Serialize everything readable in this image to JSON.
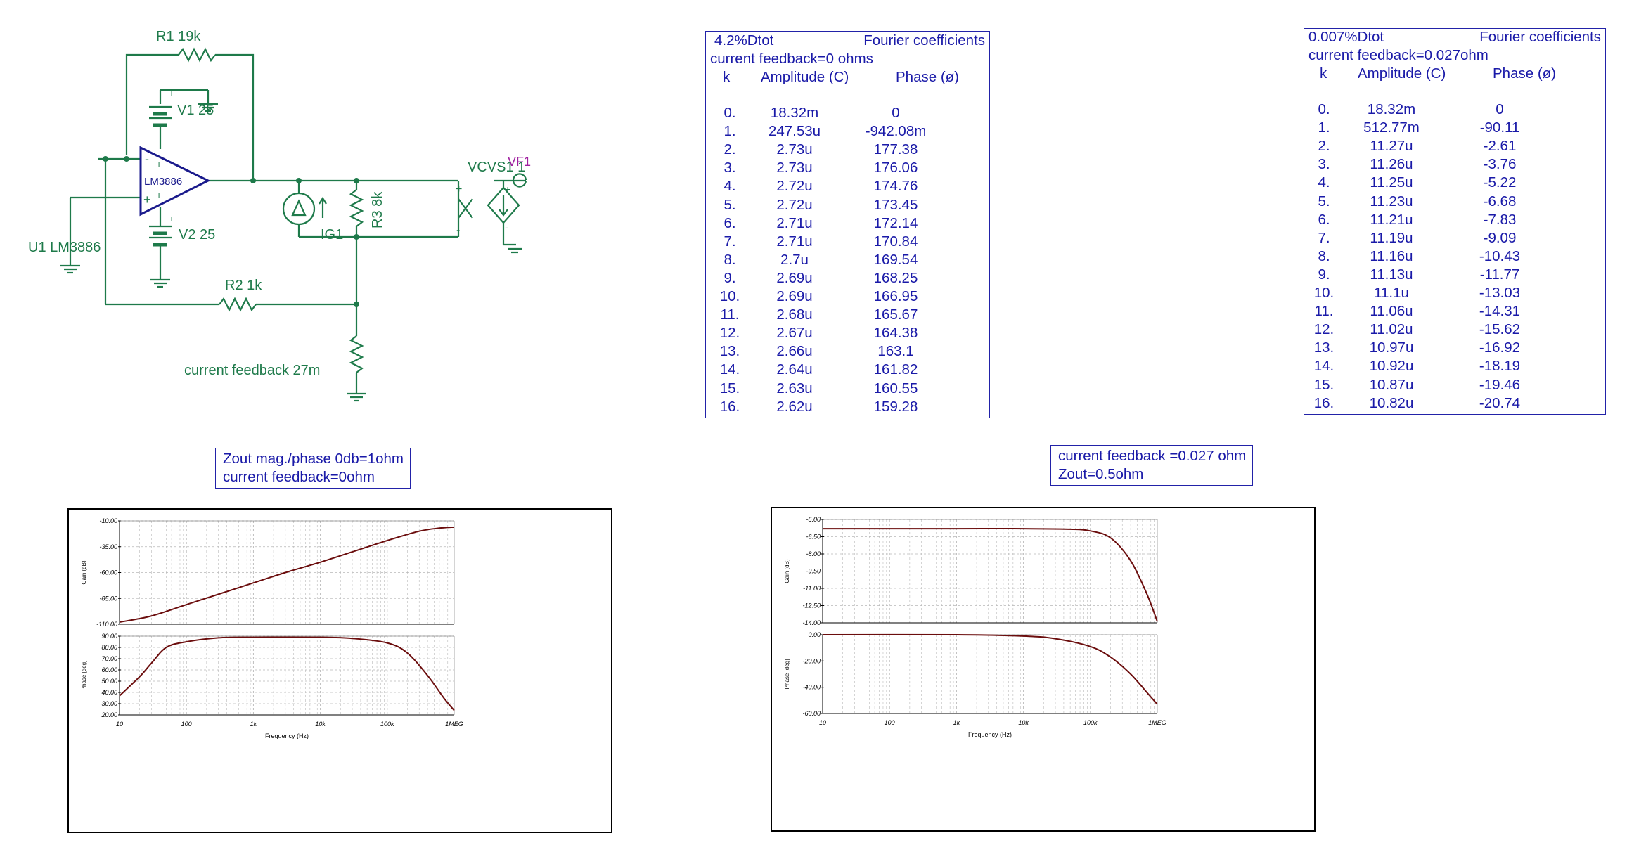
{
  "schematic": {
    "r1": "R1 19k",
    "v1": "V1 25",
    "v2": "V2 25",
    "opamp": "LM3886",
    "u1": "U1 LM3886",
    "r2": "R2 1k",
    "r3": "R3 8k",
    "ig1": "IG1",
    "vcvs": "VCVS1 1",
    "vf1": "VF1",
    "feedback": "current feedback 27m",
    "plus": "+",
    "minus": "-"
  },
  "fourier_left": {
    "title_left": "4.2%Dtot",
    "title_right": "Fourier coefficients",
    "subtitle": "current feedback=0 ohms",
    "col_k": "k",
    "col_amp": "Amplitude (C)",
    "col_phase": "Phase (ø)",
    "rows": [
      [
        "0.",
        "18.32m",
        "0"
      ],
      [
        "1.",
        "247.53u",
        "-942.08m"
      ],
      [
        "2.",
        "2.73u",
        "177.38"
      ],
      [
        "3.",
        "2.73u",
        "176.06"
      ],
      [
        "4.",
        "2.72u",
        "174.76"
      ],
      [
        "5.",
        "2.72u",
        "173.45"
      ],
      [
        "6.",
        "2.71u",
        "172.14"
      ],
      [
        "7.",
        "2.71u",
        "170.84"
      ],
      [
        "8.",
        "2.7u",
        "169.54"
      ],
      [
        "9.",
        "2.69u",
        "168.25"
      ],
      [
        "10.",
        "2.69u",
        "166.95"
      ],
      [
        "11.",
        "2.68u",
        "165.67"
      ],
      [
        "12.",
        "2.67u",
        "164.38"
      ],
      [
        "13.",
        "2.66u",
        "163.1"
      ],
      [
        "14.",
        "2.64u",
        "161.82"
      ],
      [
        "15.",
        "2.63u",
        "160.55"
      ],
      [
        "16.",
        "2.62u",
        "159.28"
      ]
    ]
  },
  "fourier_right": {
    "title_left": "0.007%Dtot",
    "title_right": "Fourier coefficients",
    "subtitle": "current feedback=0.027ohm",
    "col_k": "k",
    "col_amp": "Amplitude (C)",
    "col_phase": "Phase (ø)",
    "rows": [
      [
        "0.",
        "18.32m",
        "0"
      ],
      [
        "1.",
        "512.77m",
        "-90.11"
      ],
      [
        "2.",
        "11.27u",
        "-2.61"
      ],
      [
        "3.",
        "11.26u",
        "-3.76"
      ],
      [
        "4.",
        "11.25u",
        "-5.22"
      ],
      [
        "5.",
        "11.23u",
        "-6.68"
      ],
      [
        "6.",
        "11.21u",
        "-7.83"
      ],
      [
        "7.",
        "11.19u",
        "-9.09"
      ],
      [
        "8.",
        "11.16u",
        "-10.43"
      ],
      [
        "9.",
        "11.13u",
        "-11.77"
      ],
      [
        "10.",
        "11.1u",
        "-13.03"
      ],
      [
        "11.",
        "11.06u",
        "-14.31"
      ],
      [
        "12.",
        "11.02u",
        "-15.62"
      ],
      [
        "13.",
        "10.97u",
        "-16.92"
      ],
      [
        "14.",
        "10.92u",
        "-18.19"
      ],
      [
        "15.",
        "10.87u",
        "-19.46"
      ],
      [
        "16.",
        "10.82u",
        "-20.74"
      ]
    ]
  },
  "note_left": {
    "line1": "Zout mag./phase 0db=1ohm",
    "line2": "current feedback=0ohm"
  },
  "note_right": {
    "line1": "current feedback =0.027 ohm",
    "line2": "Zout=0.5ohm"
  },
  "colors": {
    "schematic": "#1e7a4a",
    "text": "#1a1aa8",
    "trace": "#6b0d0d",
    "grid": "#b8b8b8",
    "vf1": "#a020a0",
    "opamp": "#1a1a8c"
  },
  "chart_data": [
    {
      "type": "line",
      "title": "",
      "panels": [
        {
          "ylabel": "Gain (dB)",
          "ylim": [
            -110,
            -10
          ],
          "yticks": [
            "-10.00",
            "-35.00",
            "-60.00",
            "-85.00",
            "-110.00"
          ],
          "series": [
            {
              "x": [
                10,
                30,
                100,
                300,
                1000,
                3000,
                10000,
                30000,
                100000,
                300000,
                600000,
                1000000
              ],
              "y": [
                -108,
                -102,
                -91,
                -81,
                -70,
                -60,
                -50,
                -40,
                -29,
                -20,
                -17,
                -16
              ]
            }
          ]
        },
        {
          "ylabel": "Phase [deg]",
          "ylim": [
            20,
            90
          ],
          "yticks": [
            "90.00",
            "80.00",
            "70.00",
            "60.00",
            "50.00",
            "40.00",
            "30.00",
            "20.00"
          ],
          "series": [
            {
              "x": [
                10,
                20,
                30,
                50,
                100,
                300,
                1000,
                10000,
                30000,
                100000,
                200000,
                400000,
                700000,
                1000000
              ],
              "y": [
                37,
                54,
                66,
                80,
                85,
                88.5,
                89,
                89,
                88,
                84,
                75,
                55,
                35,
                24
              ]
            }
          ]
        }
      ],
      "xlabel": "Frequency (Hz)",
      "xscale": "log",
      "xticks": [
        "10",
        "100",
        "1k",
        "10k",
        "100k",
        "1MEG"
      ]
    },
    {
      "type": "line",
      "title": "",
      "panels": [
        {
          "ylabel": "Gain (dB)",
          "ylim": [
            -14,
            -5
          ],
          "yticks": [
            "-5.00",
            "-6.50",
            "-8.00",
            "-9.50",
            "-11.00",
            "-12.50",
            "-14.00"
          ],
          "series": [
            {
              "x": [
                10,
                1000,
                10000,
                50000,
                100000,
                200000,
                400000,
                700000,
                1000000
              ],
              "y": [
                -5.8,
                -5.8,
                -5.8,
                -5.85,
                -6.0,
                -6.6,
                -8.6,
                -11.5,
                -13.9
              ]
            }
          ]
        },
        {
          "ylabel": "Phase [deg]",
          "ylim": [
            -60,
            0
          ],
          "yticks": [
            "0.00",
            "-20.00",
            "-40.00",
            "-60.00"
          ],
          "series": [
            {
              "x": [
                10,
                1000,
                10000,
                30000,
                100000,
                200000,
                400000,
                700000,
                1000000
              ],
              "y": [
                0,
                0,
                -1,
                -3,
                -9,
                -17,
                -30,
                -44,
                -53
              ]
            }
          ]
        }
      ],
      "xlabel": "Frequency (Hz)",
      "xscale": "log",
      "xticks": [
        "10",
        "100",
        "1k",
        "10k",
        "100k",
        "1MEG"
      ]
    }
  ]
}
